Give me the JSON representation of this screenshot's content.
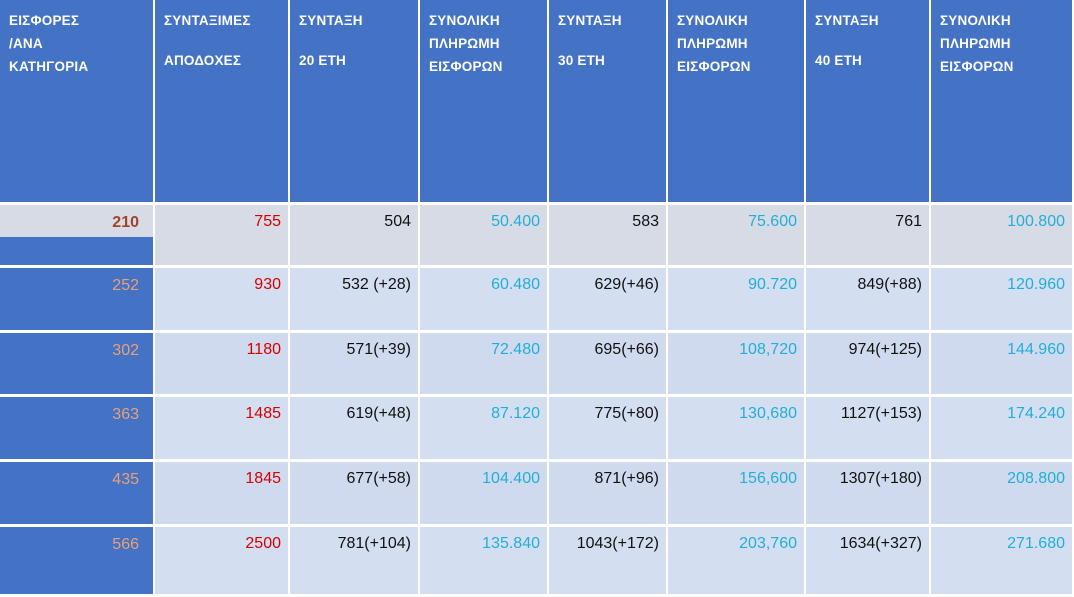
{
  "colors": {
    "header_blue": "#4472C4",
    "value_red": "#D40000",
    "value_cyan": "#21AFD8",
    "category_salmon": "#E8A07A",
    "category_dark_red": "#A3432A",
    "row_bg_first": "#D7DBE5",
    "row_bg": "#D4DEF1"
  },
  "table": {
    "headers": [
      {
        "lines": [
          "ΕΙΣΦΟΡΕΣ",
          "/ΑΝΑ",
          "ΚΑΤΗΓΟΡΙΑ"
        ]
      },
      {
        "lines": [
          "ΣΥΝΤΑΞΙΜΕΣ",
          "ΑΠΟΔΟΧΕΣ"
        ]
      },
      {
        "lines": [
          "ΣΥΝΤΑΞΗ",
          "20 ΕΤΗ"
        ]
      },
      {
        "lines": [
          "ΣΥΝΟΛΙΚΗ",
          "ΠΛΗΡΩΜΗ",
          "ΕΙΣΦΟΡΩΝ"
        ]
      },
      {
        "lines": [
          "ΣΥΝΤΑΞΗ",
          "30 ΕΤΗ"
        ]
      },
      {
        "lines": [
          "ΣΥΝΟΛΙΚΗ",
          "ΠΛΗΡΩΜΗ",
          "ΕΙΣΦΟΡΩΝ"
        ]
      },
      {
        "lines": [
          "ΣΥΝΤΑΞΗ",
          "40 ΕΤΗ"
        ]
      },
      {
        "lines": [
          "ΣΥΝΟΛΙΚΗ",
          "ΠΛΗΡΩΜΗ",
          "ΕΙΣΦΟΡΩΝ"
        ]
      }
    ],
    "rows": [
      {
        "cells": [
          "210",
          "755",
          "504",
          "50.400",
          "583",
          "75.600",
          "761",
          "100.800"
        ]
      },
      {
        "cells": [
          "252",
          "930",
          "532 (+28)",
          "60.480",
          "629(+46)",
          "90.720",
          "849(+88)",
          "120.960"
        ]
      },
      {
        "cells": [
          "302",
          "1180",
          "571(+39)",
          "72.480",
          "695(+66)",
          "108,720",
          "974(+125)",
          "144.960"
        ]
      },
      {
        "cells": [
          "363",
          "1485",
          "619(+48)",
          "87.120",
          "775(+80)",
          "130,680",
          "1127(+153)",
          "174.240"
        ]
      },
      {
        "cells": [
          "435",
          "1845",
          "677(+58)",
          "104.400",
          "871(+96)",
          "156,600",
          "1307(+180)",
          "208.800"
        ]
      },
      {
        "cells": [
          "566",
          "2500",
          "781(+104)",
          "135.840",
          "1043(+172)",
          "203,760",
          "1634(+327)",
          "271.680"
        ]
      }
    ]
  }
}
